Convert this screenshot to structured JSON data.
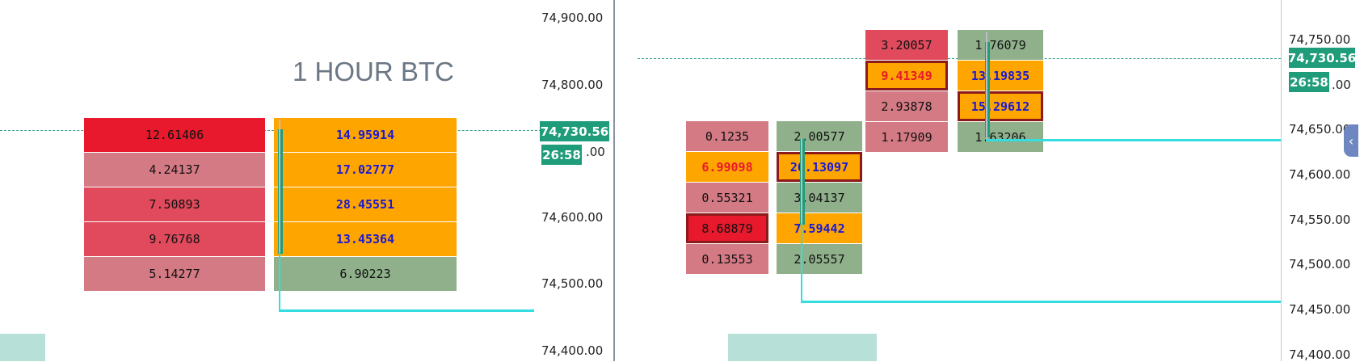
{
  "title": "1 HOUR BTC",
  "colors": {
    "bid_dark": "#e8192c",
    "bid_mid": "#e04a5c",
    "bid_light": "#d47a84",
    "ask_orange": "#ffa500",
    "ask_green": "#8fb08a",
    "tag": "#1f9c7a",
    "cyan": "#33dde0"
  },
  "chart_data": [
    {
      "type": "table",
      "name": "left-panel",
      "price_axis_labels": [
        "74,900.00",
        "74,800.00",
        ".00",
        "74,600.00",
        "74,500.00",
        "74,400.00"
      ],
      "last_price": "74,730.56",
      "countdown": "26:58",
      "candles": [
        {
          "bid": [
            "12.61406",
            "4.24137",
            "7.50893",
            "9.76768",
            "5.14277"
          ],
          "ask": [
            "14.95914",
            "17.02777",
            "28.45551",
            "13.45364",
            "6.90223"
          ]
        }
      ]
    },
    {
      "type": "table",
      "name": "right-panel",
      "price_axis_labels": [
        "74,750.00",
        ".00",
        "74,650.00",
        "74,600.00",
        "74,550.00",
        "74,500.00",
        "74,450.00",
        "74,400.00"
      ],
      "last_price": "74,730.56",
      "countdown": "26:58",
      "candles": [
        {
          "bid": [
            "0.1235",
            "6.99098",
            "0.55321",
            "8.68879",
            "0.13553"
          ],
          "ask": [
            "2.00577",
            "26.13097",
            "3.04137",
            "7.59442",
            "2.05557"
          ]
        },
        {
          "bid": [
            "3.20057",
            "9.41349",
            "2.93878",
            "1.17909"
          ],
          "ask": [
            "1.76079",
            "13.19835",
            "15.29612",
            "1.63206"
          ]
        }
      ]
    }
  ]
}
